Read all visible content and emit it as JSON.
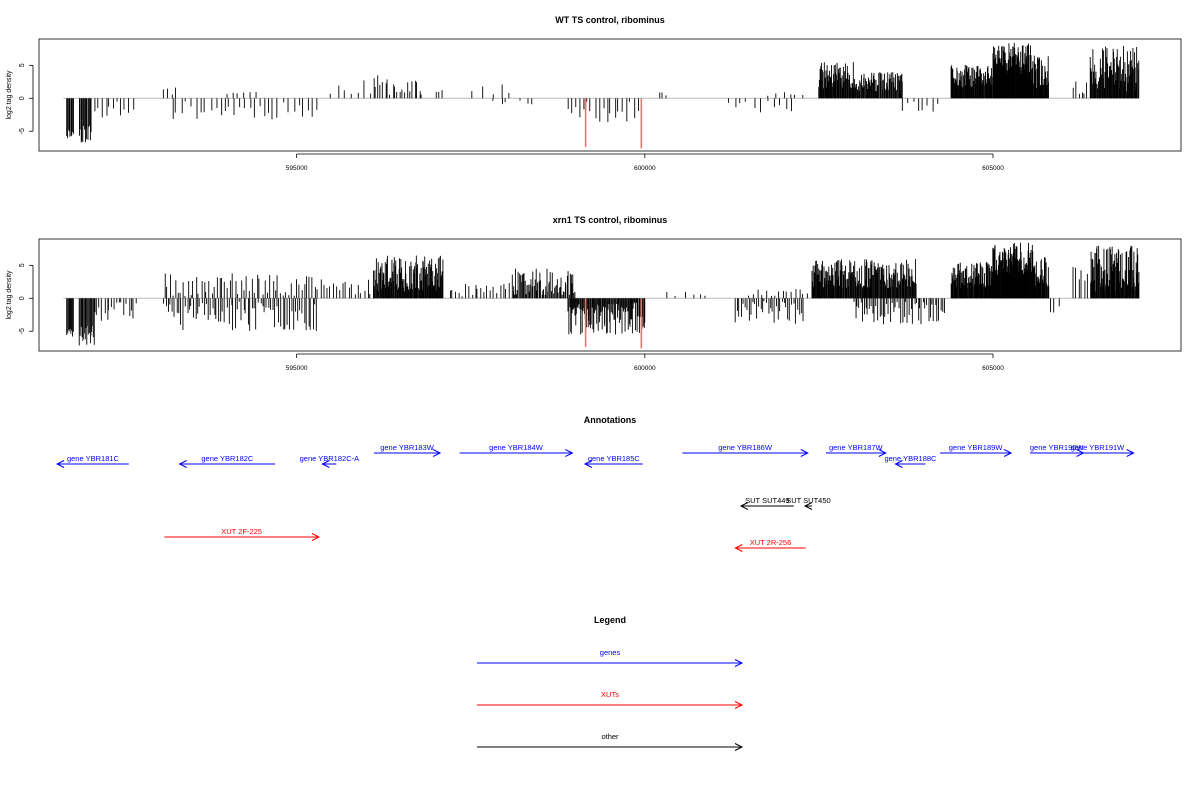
{
  "chart_data": [
    {
      "type": "bar",
      "title": "WT TS control, ribominus",
      "ylabel": "log2 tag density",
      "xlim": [
        591300,
        607700
      ],
      "ylim": [
        -8,
        9
      ],
      "xticks": [
        595000,
        600000,
        605000
      ],
      "yticks": [
        -5,
        0,
        5
      ],
      "grid": false,
      "seed": 11,
      "baseline_color": "#bbbbbb",
      "bar_color": "#000000",
      "highlight_color": "#ff6b6b",
      "highlights": [
        {
          "x": 599150,
          "y": -7.4
        },
        {
          "x": 599950,
          "y": -7.6
        }
      ],
      "segments": [
        {
          "from": 591700,
          "to": 591800,
          "step": 12,
          "ymin": -6.2,
          "ymax": -4.5
        },
        {
          "from": 591880,
          "to": 592050,
          "step": 12,
          "ymin": -6.8,
          "ymax": -4.0
        },
        {
          "from": 592100,
          "to": 592700,
          "step": 55,
          "ymin": -3.0,
          "ymax": -0.5
        },
        {
          "from": 593100,
          "to": 593300,
          "step": 60,
          "ymin": 0.3,
          "ymax": 2.2
        },
        {
          "from": 593200,
          "to": 595300,
          "step": 70,
          "ymin": -3.2,
          "ymax": -0.4
        },
        {
          "from": 594000,
          "to": 594400,
          "step": 80,
          "ymin": 0.3,
          "ymax": 1.2
        },
        {
          "from": 595500,
          "to": 596100,
          "step": 90,
          "ymin": 0.5,
          "ymax": 2.8
        },
        {
          "from": 596100,
          "to": 596800,
          "step": 35,
          "ymin": 0.5,
          "ymax": 3.5
        },
        {
          "from": 597000,
          "to": 597100,
          "step": 40,
          "ymin": 0.5,
          "ymax": 1.3
        },
        {
          "from": 597500,
          "to": 598200,
          "step": 150,
          "ymin": 0.4,
          "ymax": 2.2
        },
        {
          "from": 597800,
          "to": 598400,
          "step": 120,
          "ymin": -1.2,
          "ymax": -0.3
        },
        {
          "from": 598900,
          "to": 599900,
          "step": 55,
          "ymin": -3.8,
          "ymax": -0.5
        },
        {
          "from": 600200,
          "to": 600300,
          "step": 50,
          "ymin": 0.4,
          "ymax": 1.0
        },
        {
          "from": 601200,
          "to": 602100,
          "step": 90,
          "ymin": -2.2,
          "ymax": -0.4
        },
        {
          "from": 601800,
          "to": 602300,
          "step": 90,
          "ymin": 0.3,
          "ymax": 1.0
        },
        {
          "from": 602500,
          "to": 603000,
          "step": 9,
          "ymin": 1.5,
          "ymax": 5.5
        },
        {
          "from": 603000,
          "to": 603700,
          "step": 10,
          "ymin": 1.0,
          "ymax": 4.0
        },
        {
          "from": 603700,
          "to": 604200,
          "step": 70,
          "ymin": -2.5,
          "ymax": -0.5
        },
        {
          "from": 604400,
          "to": 605000,
          "step": 8,
          "ymin": 1.5,
          "ymax": 5.2
        },
        {
          "from": 605000,
          "to": 605550,
          "step": 6,
          "ymin": 3.5,
          "ymax": 8.5
        },
        {
          "from": 605550,
          "to": 605800,
          "step": 8,
          "ymin": 1.5,
          "ymax": 6.5
        },
        {
          "from": 606150,
          "to": 606350,
          "step": 40,
          "ymin": 0.5,
          "ymax": 3.5
        },
        {
          "from": 606400,
          "to": 607100,
          "step": 9,
          "ymin": 1.0,
          "ymax": 8.0
        }
      ]
    },
    {
      "type": "bar",
      "title": "xrn1 TS control, ribominus",
      "ylabel": "log2 tag density",
      "xlim": [
        591300,
        607700
      ],
      "ylim": [
        -8,
        9
      ],
      "xticks": [
        595000,
        600000,
        605000
      ],
      "yticks": [
        -5,
        0,
        5
      ],
      "grid": false,
      "seed": 23,
      "baseline_color": "#bbbbbb",
      "bar_color": "#000000",
      "highlight_color": "#ff6b6b",
      "highlights": [
        {
          "x": 599150,
          "y": -7.4
        },
        {
          "x": 599950,
          "y": -7.6
        }
      ],
      "segments": [
        {
          "from": 591700,
          "to": 591800,
          "step": 12,
          "ymin": -6.2,
          "ymax": -4.5
        },
        {
          "from": 591880,
          "to": 592100,
          "step": 12,
          "ymin": -7.3,
          "ymax": -4.0
        },
        {
          "from": 592100,
          "to": 592700,
          "step": 35,
          "ymin": -3.5,
          "ymax": -0.5
        },
        {
          "from": 593100,
          "to": 595300,
          "step": 30,
          "ymin": -5.0,
          "ymax": -0.5
        },
        {
          "from": 593100,
          "to": 595300,
          "step": 38,
          "ymin": 0.3,
          "ymax": 3.8
        },
        {
          "from": 595300,
          "to": 596100,
          "step": 45,
          "ymin": 0.5,
          "ymax": 3.0
        },
        {
          "from": 596100,
          "to": 597100,
          "step": 9,
          "ymin": 1.0,
          "ymax": 6.5
        },
        {
          "from": 597200,
          "to": 598100,
          "step": 45,
          "ymin": 0.3,
          "ymax": 2.5
        },
        {
          "from": 598100,
          "to": 599000,
          "step": 14,
          "ymin": 0.5,
          "ymax": 4.5
        },
        {
          "from": 598900,
          "to": 600000,
          "step": 11,
          "ymin": -5.5,
          "ymax": -0.5
        },
        {
          "from": 600300,
          "to": 601000,
          "step": 120,
          "ymin": 0.3,
          "ymax": 1.2
        },
        {
          "from": 601300,
          "to": 602300,
          "step": 28,
          "ymin": -4.0,
          "ymax": -0.4
        },
        {
          "from": 601500,
          "to": 602400,
          "step": 60,
          "ymin": 0.3,
          "ymax": 1.5
        },
        {
          "from": 602400,
          "to": 603900,
          "step": 9,
          "ymin": 1.5,
          "ymax": 6.0
        },
        {
          "from": 603000,
          "to": 604300,
          "step": 25,
          "ymin": -4.0,
          "ymax": -0.5
        },
        {
          "from": 604400,
          "to": 605000,
          "step": 8,
          "ymin": 1.5,
          "ymax": 5.5
        },
        {
          "from": 605000,
          "to": 605600,
          "step": 6,
          "ymin": 3.5,
          "ymax": 8.5
        },
        {
          "from": 605600,
          "to": 605800,
          "step": 8,
          "ymin": 1.5,
          "ymax": 6.5
        },
        {
          "from": 605800,
          "to": 606000,
          "step": 70,
          "ymin": -2.2,
          "ymax": -0.5
        },
        {
          "from": 606150,
          "to": 606350,
          "step": 40,
          "ymin": 0.5,
          "ymax": 7.0
        },
        {
          "from": 606400,
          "to": 607100,
          "step": 8,
          "ymin": 1.0,
          "ymax": 8.0
        }
      ]
    }
  ],
  "annotations": {
    "title": "Annotations",
    "colors": {
      "gene": "#0000ff",
      "xut": "#ff0000",
      "other": "#000000"
    },
    "features": [
      {
        "label": "gene YBR181C",
        "kind": "gene",
        "strand": "-",
        "start": 591560,
        "end": 592590,
        "row": 1
      },
      {
        "label": "gene YBR182C",
        "kind": "gene",
        "strand": "-",
        "start": 593320,
        "end": 594690,
        "row": 1
      },
      {
        "label": "gene YBR182C-A",
        "kind": "gene",
        "strand": "-",
        "start": 595370,
        "end": 595570,
        "row": 1
      },
      {
        "label": "gene YBR183W",
        "kind": "gene",
        "strand": "+",
        "start": 596110,
        "end": 597060,
        "row": 0
      },
      {
        "label": "gene YBR184W",
        "kind": "gene",
        "strand": "+",
        "start": 597340,
        "end": 598960,
        "row": 0
      },
      {
        "label": "gene YBR185C",
        "kind": "gene",
        "strand": "-",
        "start": 599140,
        "end": 599970,
        "row": 1
      },
      {
        "label": "gene YBR186W",
        "kind": "gene",
        "strand": "+",
        "start": 600540,
        "end": 602340,
        "row": 0
      },
      {
        "label": "gene YBR187W",
        "kind": "gene",
        "strand": "+",
        "start": 602600,
        "end": 603460,
        "row": 0
      },
      {
        "label": "gene YBR188C",
        "kind": "gene",
        "strand": "-",
        "start": 603600,
        "end": 604030,
        "row": 1
      },
      {
        "label": "gene YBR189W",
        "kind": "gene",
        "strand": "+",
        "start": 604240,
        "end": 605260,
        "row": 0
      },
      {
        "label": "gene YBR190W",
        "kind": "gene",
        "strand": "+",
        "start": 605530,
        "end": 606300,
        "row": 0
      },
      {
        "label": "gene YBR191W",
        "kind": "gene",
        "strand": "+",
        "start": 605980,
        "end": 607020,
        "row": 0
      },
      {
        "label": "SUT SUT449",
        "kind": "other",
        "strand": "-",
        "start": 601380,
        "end": 602140,
        "row": 2
      },
      {
        "label": "SUT SUT450",
        "kind": "other",
        "strand": "-",
        "start": 602300,
        "end": 602400,
        "row": 2
      },
      {
        "label": "XUT 2F-225",
        "kind": "xut",
        "strand": "+",
        "start": 593100,
        "end": 595320,
        "row": 3
      },
      {
        "label": "XUT 2R-256",
        "kind": "xut",
        "strand": "-",
        "start": 601300,
        "end": 602310,
        "row": 4
      }
    ]
  },
  "legend": {
    "title": "Legend",
    "entries": [
      {
        "label": "genes",
        "color": "#0000ff"
      },
      {
        "label": "XUTs",
        "color": "#ff0000"
      },
      {
        "label": "other",
        "color": "#000000"
      }
    ]
  }
}
